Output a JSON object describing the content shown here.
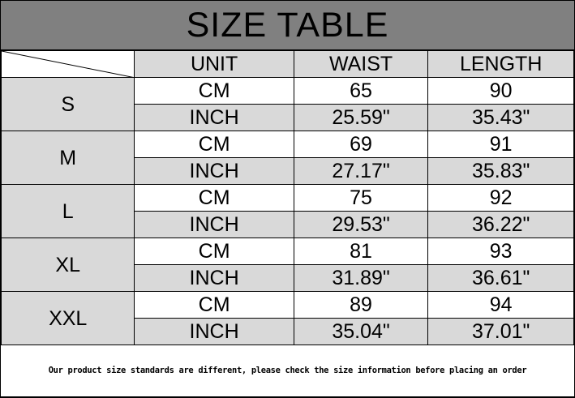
{
  "title": "SIZE TABLE",
  "headers": [
    "UNIT",
    "WAIST",
    "LENGTH"
  ],
  "rows": [
    {
      "size": "S",
      "cm": {
        "unit": "CM",
        "waist": "65",
        "length": "90"
      },
      "inch": {
        "unit": "INCH",
        "waist": "25.59\"",
        "length": "35.43\""
      }
    },
    {
      "size": "M",
      "cm": {
        "unit": "CM",
        "waist": "69",
        "length": "91"
      },
      "inch": {
        "unit": "INCH",
        "waist": "27.17\"",
        "length": "35.83\""
      }
    },
    {
      "size": "L",
      "cm": {
        "unit": "CM",
        "waist": "75",
        "length": "92"
      },
      "inch": {
        "unit": "INCH",
        "waist": "29.53\"",
        "length": "36.22\""
      }
    },
    {
      "size": "XL",
      "cm": {
        "unit": "CM",
        "waist": "81",
        "length": "93"
      },
      "inch": {
        "unit": "INCH",
        "waist": "31.89\"",
        "length": "36.61\""
      }
    },
    {
      "size": "XXL",
      "cm": {
        "unit": "CM",
        "waist": "89",
        "length": "94"
      },
      "inch": {
        "unit": "INCH",
        "waist": "35.04\"",
        "length": "37.01\""
      }
    }
  ],
  "footer_note": "Our product size standards are different, please check the size information before placing an order",
  "colors": {
    "title_bar": "#808080",
    "shaded_cell": "#d9d9d9",
    "white_cell": "#ffffff"
  }
}
